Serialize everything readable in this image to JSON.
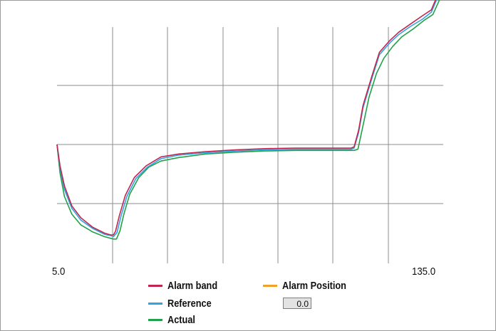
{
  "chart_data": {
    "type": "line",
    "xlim": [
      5.0,
      135.0
    ],
    "x_tick_labels": [
      "5.0",
      "135.0"
    ],
    "grid": true,
    "legend_placement": "bottom",
    "series": [
      {
        "name": "Alarm band",
        "color": "#c0264f",
        "x": [
          5.0,
          6.0,
          7.5,
          10.0,
          13.0,
          17.0,
          21.0,
          23.0,
          24.0,
          24.7,
          26.0,
          28.0,
          31.0,
          35.0,
          40.0,
          46.0,
          55.0,
          65.0,
          75.0,
          85.0,
          100.0,
          104.0,
          105.0,
          106.5,
          108.0,
          111.0,
          113.5,
          117.0,
          120.0,
          124.0,
          128.0,
          131.0,
          133.0,
          134.0
        ],
        "y": [
          0.0,
          -0.18,
          -0.35,
          -0.52,
          -0.62,
          -0.7,
          -0.75,
          -0.765,
          -0.765,
          -0.735,
          -0.6,
          -0.43,
          -0.28,
          -0.18,
          -0.105,
          -0.08,
          -0.06,
          -0.045,
          -0.035,
          -0.03,
          -0.03,
          -0.03,
          -0.02,
          0.12,
          0.33,
          0.58,
          0.78,
          0.88,
          0.95,
          1.02,
          1.09,
          1.14,
          1.26,
          1.33
        ]
      },
      {
        "name": "Reference",
        "color": "#2fa4e0",
        "x": [
          5.0,
          6.0,
          7.5,
          10.0,
          13.0,
          17.0,
          21.0,
          23.0,
          24.0,
          25.2,
          26.5,
          28.5,
          31.5,
          35.5,
          40.0,
          46.0,
          55.0,
          65.0,
          75.0,
          85.0,
          100.0,
          104.0,
          105.0,
          106.5,
          108.0,
          111.0,
          113.5,
          117.0,
          120.0,
          124.0,
          128.0,
          131.0,
          133.0,
          134.0
        ],
        "y": [
          0.0,
          -0.2,
          -0.38,
          -0.54,
          -0.64,
          -0.71,
          -0.76,
          -0.77,
          -0.78,
          -0.745,
          -0.61,
          -0.44,
          -0.29,
          -0.19,
          -0.12,
          -0.09,
          -0.07,
          -0.055,
          -0.045,
          -0.04,
          -0.04,
          -0.04,
          -0.03,
          0.1,
          0.31,
          0.56,
          0.76,
          0.86,
          0.93,
          1.0,
          1.06,
          1.12,
          1.24,
          1.31
        ]
      },
      {
        "name": "Actual",
        "color": "#23a04a",
        "x": [
          5.0,
          6.0,
          7.5,
          10.0,
          13.0,
          17.0,
          21.0,
          24.0,
          25.0,
          26.2,
          27.5,
          29.5,
          32.5,
          36.0,
          40.0,
          46.0,
          55.0,
          65.0,
          75.0,
          85.0,
          100.0,
          105.0,
          106.3,
          108.0,
          110.0,
          112.5,
          115.0,
          118.0,
          121.0,
          125.0,
          128.5,
          131.5,
          133.5,
          134.5
        ],
        "y": [
          0.0,
          -0.24,
          -0.44,
          -0.59,
          -0.68,
          -0.74,
          -0.78,
          -0.8,
          -0.8,
          -0.73,
          -0.59,
          -0.42,
          -0.28,
          -0.19,
          -0.14,
          -0.11,
          -0.08,
          -0.065,
          -0.055,
          -0.05,
          -0.05,
          -0.05,
          -0.04,
          0.16,
          0.4,
          0.6,
          0.73,
          0.83,
          0.91,
          0.98,
          1.05,
          1.1,
          1.21,
          1.3
        ]
      },
      {
        "name": "Alarm Position",
        "color": "#f0a12a",
        "x": [],
        "y": []
      }
    ],
    "alarm_position_value": "0.0"
  }
}
